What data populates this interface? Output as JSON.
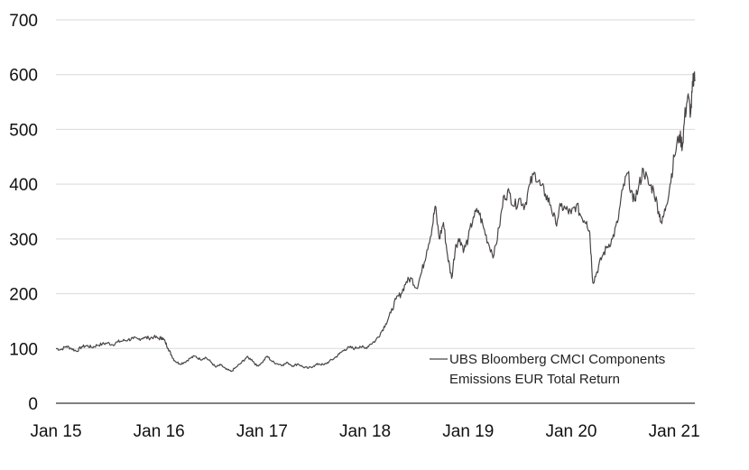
{
  "chart_data": {
    "type": "line",
    "title": "",
    "xlabel": "",
    "ylabel": "",
    "ylim": [
      0,
      700
    ],
    "yticks": [
      0,
      100,
      200,
      300,
      400,
      500,
      600,
      700
    ],
    "xticks": [
      "Jan 15",
      "Jan 16",
      "Jan 17",
      "Jan 18",
      "Jan 19",
      "Jan 20",
      "Jan 21"
    ],
    "xlim": [
      2015.0,
      2021.2
    ],
    "grid": "horizontal",
    "legend_position": "center-right",
    "colors": {
      "line": "#4a4545",
      "grid": "#d9d9d9",
      "axis": "#000000"
    },
    "series": [
      {
        "name": "UBS Bloomberg CMCI Components Emissions EUR Total Return",
        "legend_lines": [
          "UBS Bloomberg CMCI Components",
          "Emissions EUR Total Return"
        ],
        "points": [
          [
            2015.0,
            100
          ],
          [
            2015.05,
            98
          ],
          [
            2015.1,
            104
          ],
          [
            2015.15,
            100
          ],
          [
            2015.2,
            95
          ],
          [
            2015.25,
            103
          ],
          [
            2015.3,
            105
          ],
          [
            2015.35,
            102
          ],
          [
            2015.4,
            106
          ],
          [
            2015.45,
            108
          ],
          [
            2015.5,
            110
          ],
          [
            2015.55,
            107
          ],
          [
            2015.6,
            112
          ],
          [
            2015.65,
            114
          ],
          [
            2015.7,
            116
          ],
          [
            2015.75,
            118
          ],
          [
            2015.8,
            117
          ],
          [
            2015.85,
            120
          ],
          [
            2015.9,
            119
          ],
          [
            2015.95,
            121
          ],
          [
            2016.0,
            118
          ],
          [
            2016.03,
            120
          ],
          [
            2016.06,
            112
          ],
          [
            2016.09,
            100
          ],
          [
            2016.12,
            88
          ],
          [
            2016.15,
            78
          ],
          [
            2016.2,
            72
          ],
          [
            2016.25,
            75
          ],
          [
            2016.3,
            82
          ],
          [
            2016.35,
            86
          ],
          [
            2016.4,
            80
          ],
          [
            2016.45,
            84
          ],
          [
            2016.5,
            76
          ],
          [
            2016.55,
            66
          ],
          [
            2016.6,
            70
          ],
          [
            2016.65,
            62
          ],
          [
            2016.7,
            58
          ],
          [
            2016.75,
            66
          ],
          [
            2016.8,
            74
          ],
          [
            2016.85,
            84
          ],
          [
            2016.9,
            80
          ],
          [
            2016.95,
            68
          ],
          [
            2017.0,
            74
          ],
          [
            2017.05,
            86
          ],
          [
            2017.1,
            76
          ],
          [
            2017.15,
            72
          ],
          [
            2017.2,
            70
          ],
          [
            2017.25,
            74
          ],
          [
            2017.3,
            68
          ],
          [
            2017.35,
            72
          ],
          [
            2017.4,
            66
          ],
          [
            2017.45,
            64
          ],
          [
            2017.5,
            68
          ],
          [
            2017.55,
            72
          ],
          [
            2017.6,
            70
          ],
          [
            2017.65,
            76
          ],
          [
            2017.7,
            82
          ],
          [
            2017.75,
            90
          ],
          [
            2017.8,
            98
          ],
          [
            2017.85,
            102
          ],
          [
            2017.9,
            100
          ],
          [
            2017.95,
            104
          ],
          [
            2018.0,
            100
          ],
          [
            2018.05,
            108
          ],
          [
            2018.1,
            114
          ],
          [
            2018.15,
            128
          ],
          [
            2018.2,
            145
          ],
          [
            2018.25,
            165
          ],
          [
            2018.3,
            190
          ],
          [
            2018.35,
            200
          ],
          [
            2018.4,
            222
          ],
          [
            2018.45,
            228
          ],
          [
            2018.5,
            210
          ],
          [
            2018.55,
            240
          ],
          [
            2018.6,
            280
          ],
          [
            2018.65,
            320
          ],
          [
            2018.68,
            360
          ],
          [
            2018.72,
            300
          ],
          [
            2018.76,
            330
          ],
          [
            2018.8,
            270
          ],
          [
            2018.84,
            228
          ],
          [
            2018.88,
            290
          ],
          [
            2018.92,
            300
          ],
          [
            2018.96,
            280
          ],
          [
            2019.0,
            300
          ],
          [
            2019.05,
            340
          ],
          [
            2019.1,
            352
          ],
          [
            2019.15,
            320
          ],
          [
            2019.2,
            290
          ],
          [
            2019.25,
            270
          ],
          [
            2019.3,
            320
          ],
          [
            2019.35,
            380
          ],
          [
            2019.4,
            384
          ],
          [
            2019.45,
            360
          ],
          [
            2019.5,
            374
          ],
          [
            2019.55,
            360
          ],
          [
            2019.6,
            400
          ],
          [
            2019.65,
            420
          ],
          [
            2019.7,
            398
          ],
          [
            2019.75,
            382
          ],
          [
            2019.8,
            362
          ],
          [
            2019.85,
            328
          ],
          [
            2019.9,
            360
          ],
          [
            2019.95,
            354
          ],
          [
            2020.0,
            346
          ],
          [
            2020.05,
            362
          ],
          [
            2020.1,
            340
          ],
          [
            2020.15,
            332
          ],
          [
            2020.18,
            312
          ],
          [
            2020.21,
            220
          ],
          [
            2020.25,
            240
          ],
          [
            2020.3,
            268
          ],
          [
            2020.35,
            286
          ],
          [
            2020.4,
            300
          ],
          [
            2020.45,
            330
          ],
          [
            2020.5,
            390
          ],
          [
            2020.55,
            420
          ],
          [
            2020.6,
            368
          ],
          [
            2020.65,
            390
          ],
          [
            2020.7,
            428
          ],
          [
            2020.75,
            400
          ],
          [
            2020.8,
            390
          ],
          [
            2020.85,
            350
          ],
          [
            2020.88,
            328
          ],
          [
            2020.92,
            360
          ],
          [
            2020.96,
            400
          ],
          [
            2021.0,
            450
          ],
          [
            2021.05,
            490
          ],
          [
            2021.08,
            470
          ],
          [
            2021.1,
            520
          ],
          [
            2021.13,
            560
          ],
          [
            2021.16,
            530
          ],
          [
            2021.18,
            580
          ],
          [
            2021.19,
            600
          ],
          [
            2021.2,
            588
          ]
        ]
      }
    ]
  }
}
